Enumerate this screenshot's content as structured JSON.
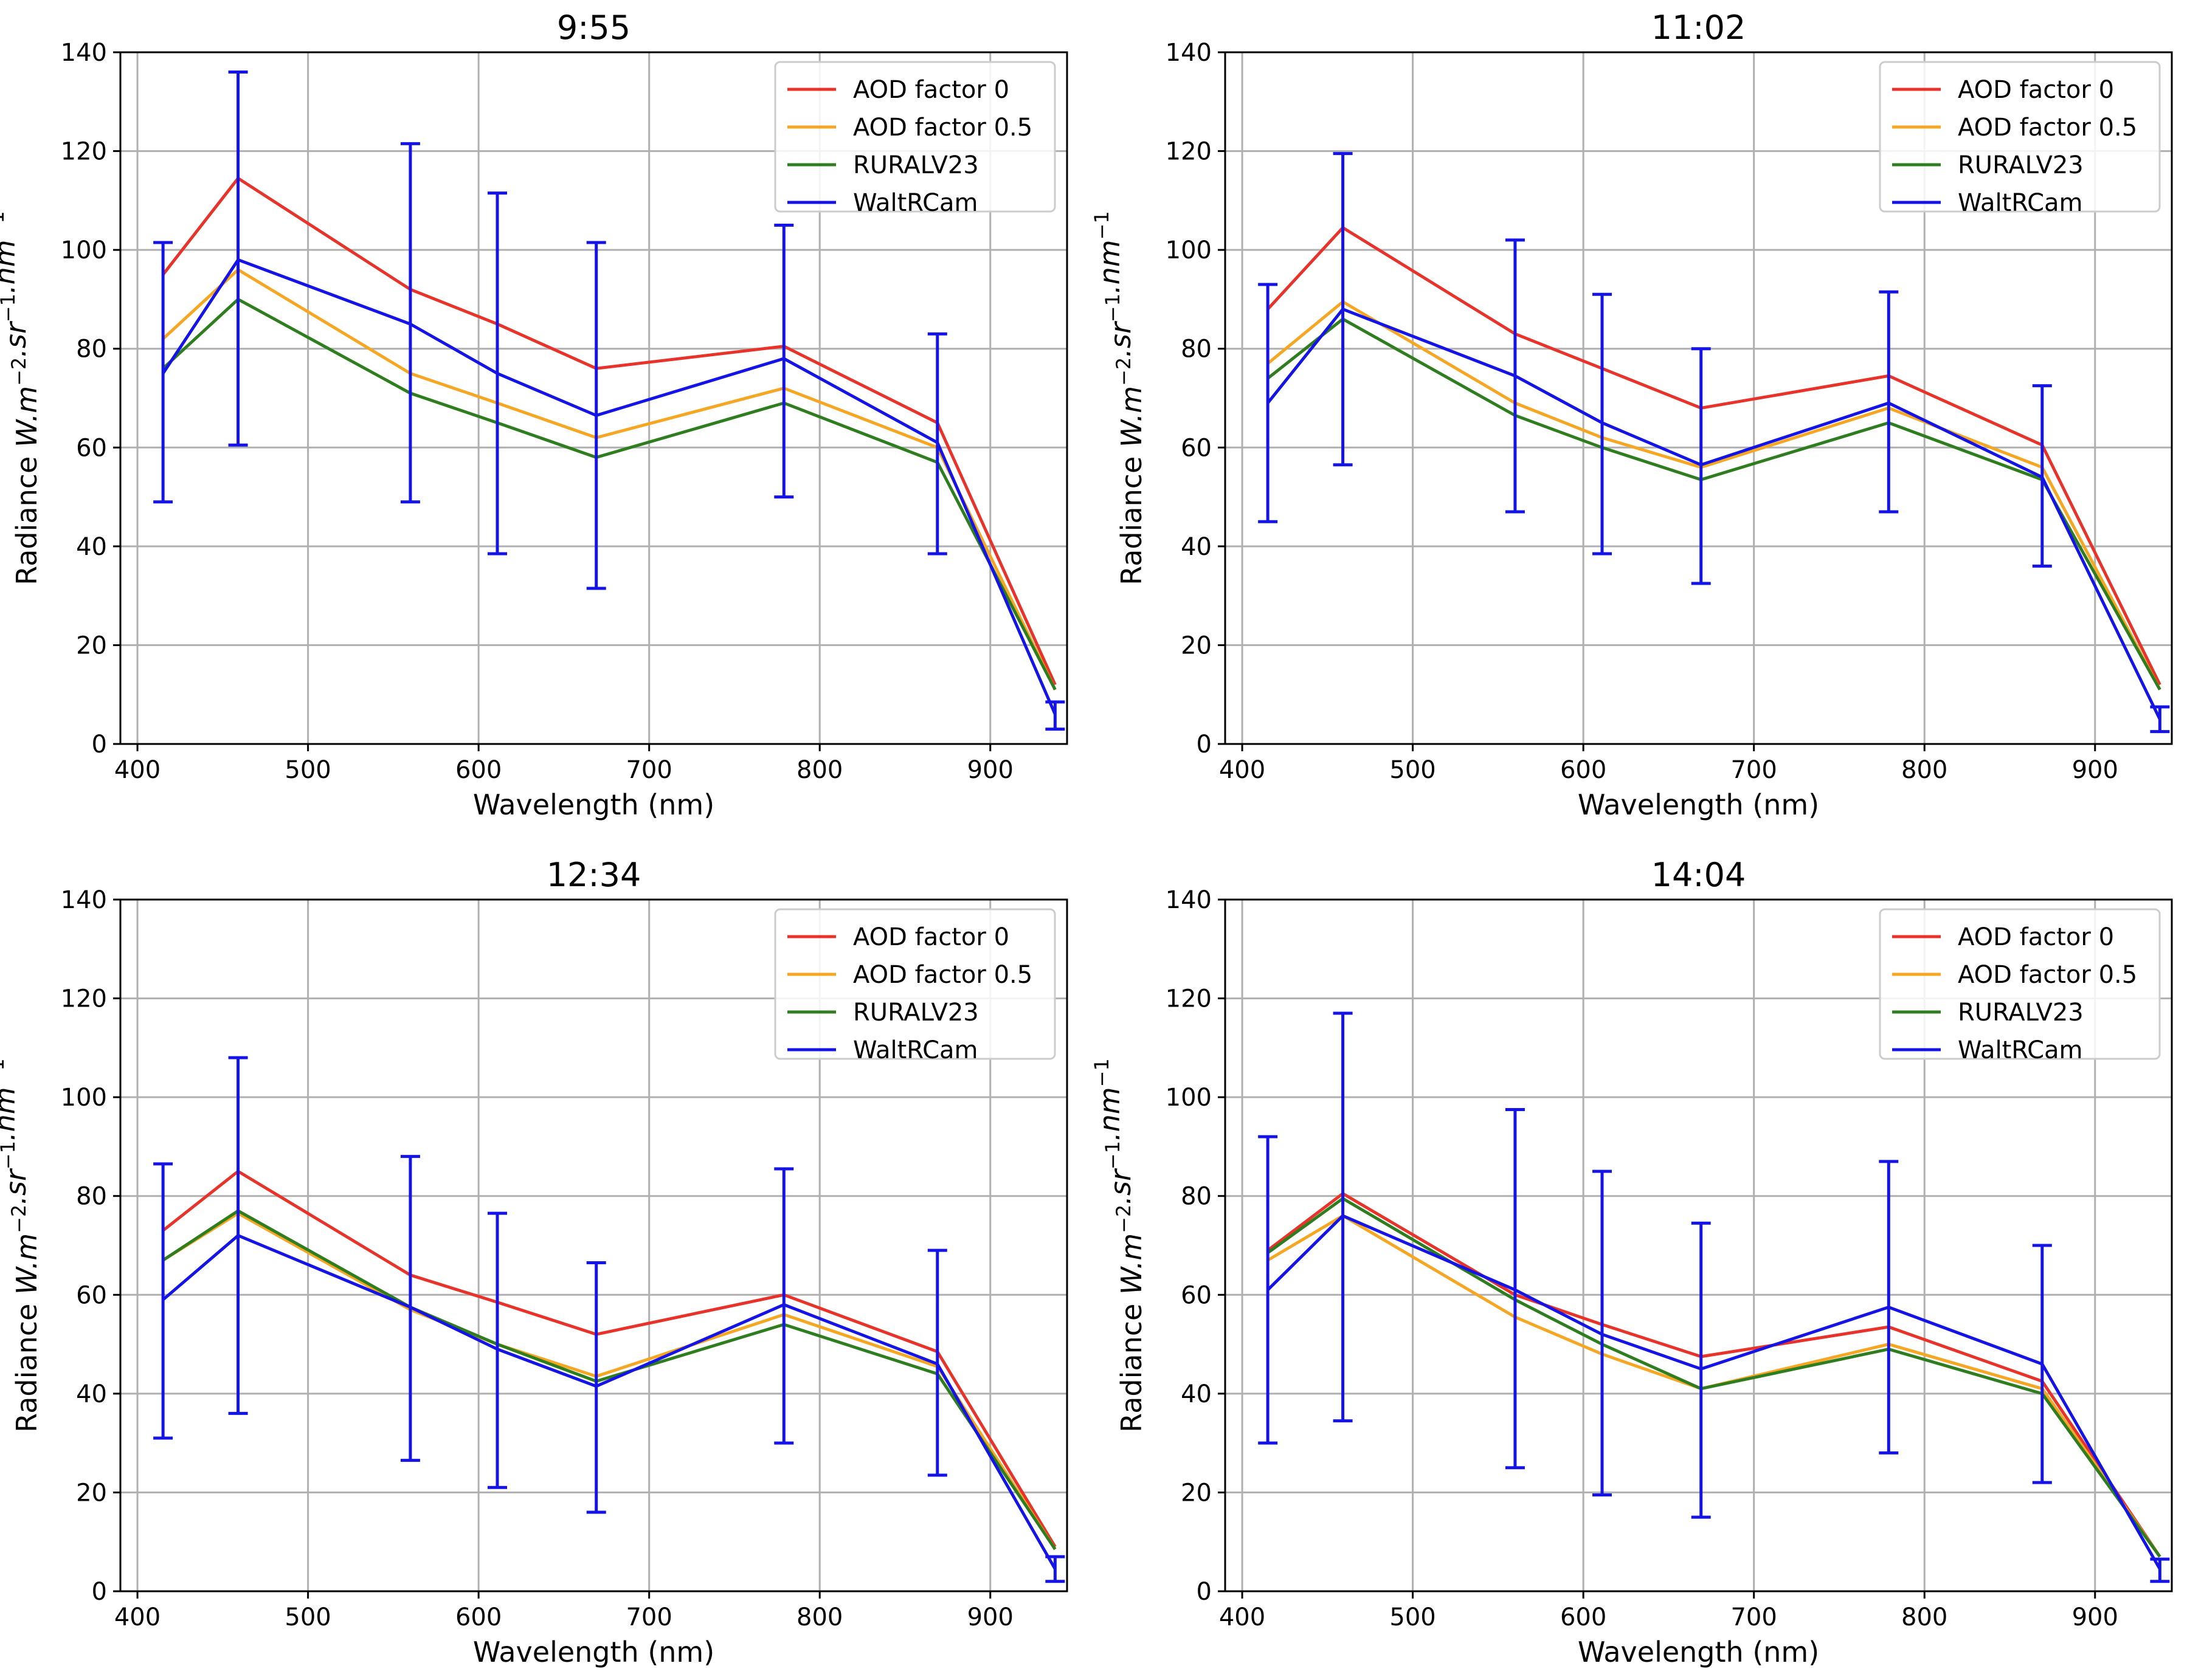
{
  "chart_data": [
    {
      "type": "line",
      "title": "9:55",
      "xlabel": "Wavelength (nm)",
      "ylabel": "Radiance W.m^-2.sr^-1.nm^-1",
      "xlim": [
        390,
        945
      ],
      "ylim": [
        0,
        140
      ],
      "xticks": [
        400,
        500,
        600,
        700,
        800,
        900
      ],
      "yticks": [
        0,
        20,
        40,
        60,
        80,
        100,
        120,
        140
      ],
      "grid": true,
      "legend_position": "top-right",
      "x": [
        415,
        459,
        560,
        611,
        669,
        779,
        869,
        938
      ],
      "series": [
        {
          "name": "AOD factor 0",
          "color": "#e8332a",
          "values": [
            95,
            114.5,
            92,
            85,
            76,
            80.5,
            65,
            12
          ]
        },
        {
          "name": "AOD factor 0.5",
          "color": "#f5a623",
          "values": [
            82,
            96,
            75,
            69,
            62,
            72,
            60,
            11
          ]
        },
        {
          "name": "RURALV23",
          "color": "#2e7d1e",
          "values": [
            76,
            90,
            71,
            65,
            58,
            69,
            57,
            11
          ]
        },
        {
          "name": "WaltRCam",
          "color": "#1414e6",
          "values": [
            75,
            98,
            85,
            75,
            66.5,
            78,
            61,
            6
          ],
          "error_low": [
            49,
            60.5,
            49,
            38.5,
            31.5,
            50,
            38.5,
            3
          ],
          "error_high": [
            101.5,
            136,
            121.5,
            111.5,
            101.5,
            105,
            83,
            8.5
          ]
        }
      ]
    },
    {
      "type": "line",
      "title": "11:02",
      "xlabel": "Wavelength (nm)",
      "ylabel": "Radiance W.m^-2.sr^-1.nm^-1",
      "xlim": [
        390,
        945
      ],
      "ylim": [
        0,
        140
      ],
      "xticks": [
        400,
        500,
        600,
        700,
        800,
        900
      ],
      "yticks": [
        0,
        20,
        40,
        60,
        80,
        100,
        120,
        140
      ],
      "grid": true,
      "legend_position": "top-right",
      "x": [
        415,
        459,
        560,
        611,
        669,
        779,
        869,
        938
      ],
      "series": [
        {
          "name": "AOD factor 0",
          "color": "#e8332a",
          "values": [
            88,
            104.5,
            83,
            76,
            68,
            74.5,
            60.5,
            12
          ]
        },
        {
          "name": "AOD factor 0.5",
          "color": "#f5a623",
          "values": [
            77,
            89.5,
            69,
            62,
            56,
            68,
            56,
            11
          ]
        },
        {
          "name": "RURALV23",
          "color": "#2e7d1e",
          "values": [
            74,
            86,
            66.5,
            60,
            53.5,
            65,
            53.5,
            11
          ]
        },
        {
          "name": "WaltRCam",
          "color": "#1414e6",
          "values": [
            69,
            88,
            74.5,
            65,
            56.5,
            69,
            54,
            5
          ],
          "error_low": [
            45,
            56.5,
            47,
            38.5,
            32.5,
            47,
            36,
            2.5
          ],
          "error_high": [
            93,
            119.5,
            102,
            91,
            80,
            91.5,
            72.5,
            7.5
          ]
        }
      ]
    },
    {
      "type": "line",
      "title": "12:34",
      "xlabel": "Wavelength (nm)",
      "ylabel": "Radiance W.m^-2.sr^-1.nm^-1",
      "xlim": [
        390,
        945
      ],
      "ylim": [
        0,
        140
      ],
      "xticks": [
        400,
        500,
        600,
        700,
        800,
        900
      ],
      "yticks": [
        0,
        20,
        40,
        60,
        80,
        100,
        120,
        140
      ],
      "grid": true,
      "legend_position": "top-right",
      "x": [
        415,
        459,
        560,
        611,
        669,
        779,
        869,
        938
      ],
      "series": [
        {
          "name": "AOD factor 0",
          "color": "#e8332a",
          "values": [
            73,
            85,
            64,
            58.5,
            52,
            60,
            48.5,
            9
          ]
        },
        {
          "name": "AOD factor 0.5",
          "color": "#f5a623",
          "values": [
            67,
            76.5,
            57,
            50,
            43.5,
            56,
            45.5,
            8.5
          ]
        },
        {
          "name": "RURALV23",
          "color": "#2e7d1e",
          "values": [
            67,
            77,
            57.5,
            50,
            42.5,
            54,
            44,
            8.5
          ]
        },
        {
          "name": "WaltRCam",
          "color": "#1414e6",
          "values": [
            59,
            72,
            57.5,
            49,
            41.5,
            58,
            46,
            4.5
          ],
          "error_low": [
            31,
            36,
            26.5,
            21,
            16,
            30,
            23.5,
            2
          ],
          "error_high": [
            86.5,
            108,
            88,
            76.5,
            66.5,
            85.5,
            69,
            7
          ]
        }
      ]
    },
    {
      "type": "line",
      "title": "14:04",
      "xlabel": "Wavelength (nm)",
      "ylabel": "Radiance W.m^-2.sr^-1.nm^-1",
      "xlim": [
        390,
        945
      ],
      "ylim": [
        0,
        140
      ],
      "xticks": [
        400,
        500,
        600,
        700,
        800,
        900
      ],
      "yticks": [
        0,
        20,
        40,
        60,
        80,
        100,
        120,
        140
      ],
      "grid": true,
      "legend_position": "top-right",
      "x": [
        415,
        459,
        560,
        611,
        669,
        779,
        869,
        938
      ],
      "series": [
        {
          "name": "AOD factor 0",
          "color": "#e8332a",
          "values": [
            69,
            80.5,
            60,
            54,
            47.5,
            53.5,
            42.5,
            7
          ]
        },
        {
          "name": "AOD factor 0.5",
          "color": "#f5a623",
          "values": [
            67,
            76,
            55.5,
            48,
            41,
            50,
            41,
            7
          ]
        },
        {
          "name": "RURALV23",
          "color": "#2e7d1e",
          "values": [
            68.5,
            79.5,
            59,
            50,
            41,
            49,
            40,
            7
          ]
        },
        {
          "name": "WaltRCam",
          "color": "#1414e6",
          "values": [
            61,
            76,
            61,
            52,
            45,
            57.5,
            46,
            4.5
          ],
          "error_low": [
            30,
            34.5,
            25,
            19.5,
            15,
            28,
            22,
            2
          ],
          "error_high": [
            92,
            117,
            97.5,
            85,
            74.5,
            87,
            70,
            6.5
          ]
        }
      ]
    }
  ]
}
